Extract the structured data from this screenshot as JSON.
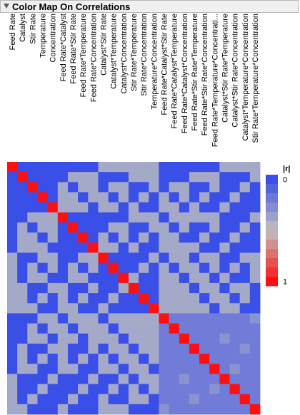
{
  "panel": {
    "title": "Color Map On Correlations",
    "disclosure_icon": "triangle-down-icon"
  },
  "chart_data": {
    "type": "heatmap",
    "title": "Color Map On Correlations",
    "variables": [
      "Feed Rate",
      "Catalyst",
      "Stir Rate",
      "Temperature",
      "Concentration",
      "Feed Rate*Catalyst",
      "Feed Rate*Stir Rate",
      "Feed Rate*Temperature",
      "Feed Rate*Concentration",
      "Catalyst*Stir Rate",
      "Catalyst*Temperature",
      "Catalyst*Concentration",
      "Stir Rate*Temperature",
      "Stir Rate*Concentration",
      "Temperature*Concentration",
      "Feed Rate*Catalyst*Stir Rate",
      "Feed Rate*Catalyst*Temperature",
      "Feed Rate*Catalyst*Concentration",
      "Feed Rate*Stir Rate*Temperature",
      "Feed Rate*Stir Rate*Concentration",
      "Feed Rate*Temperature*Concentrati...",
      "Catalyst*Stir Rate*Temperature",
      "Catalyst*Stir Rate*Concentration",
      "Catalyst*Temperature*Concentration",
      "Stir Rate*Temperature*Concentration"
    ],
    "value_label": "|r|",
    "color_scale": {
      "min": 0,
      "max": 1,
      "ticks": [
        0,
        1
      ],
      "low_color": "#3a4ee8",
      "mid_color": "#c0c0c0",
      "high_color": "#ff1010"
    },
    "legend_position": "right",
    "abs_r_matrix": [
      [
        1,
        0,
        0,
        0,
        0,
        0,
        0,
        0,
        0,
        0.4,
        0.4,
        0.4,
        0.4,
        0.4,
        0.4,
        0,
        0,
        0,
        0,
        0,
        0,
        0.4,
        0.4,
        0.4,
        0.4
      ],
      [
        0,
        1,
        0,
        0,
        0,
        0,
        0.4,
        0.4,
        0.4,
        0,
        0,
        0,
        0.4,
        0.4,
        0.4,
        0,
        0,
        0,
        0.4,
        0.4,
        0.4,
        0,
        0,
        0,
        0.4
      ],
      [
        0,
        0,
        1,
        0,
        0,
        0.4,
        0,
        0.4,
        0.4,
        0,
        0.4,
        0.4,
        0,
        0,
        0.4,
        0,
        0.4,
        0.4,
        0,
        0,
        0.4,
        0,
        0,
        0.4,
        0
      ],
      [
        0,
        0,
        0,
        1,
        0,
        0.4,
        0.4,
        0,
        0.4,
        0.4,
        0,
        0.4,
        0,
        0.4,
        0,
        0.4,
        0,
        0.4,
        0,
        0.4,
        0,
        0,
        0.4,
        0,
        0
      ],
      [
        0,
        0,
        0,
        0,
        1,
        0.4,
        0.4,
        0.4,
        0,
        0.4,
        0.4,
        0,
        0.4,
        0,
        0,
        0.4,
        0.4,
        0,
        0.4,
        0,
        0,
        0.4,
        0,
        0,
        0
      ],
      [
        0,
        0,
        0.4,
        0.4,
        0.4,
        1,
        0,
        0,
        0,
        0,
        0,
        0,
        0.4,
        0.4,
        0.4,
        0,
        0.4,
        0.4,
        0.4,
        0.4,
        0.4,
        0,
        0,
        0,
        0.4
      ],
      [
        0,
        0.4,
        0,
        0.4,
        0.4,
        0,
        1,
        0,
        0,
        0,
        0.4,
        0.4,
        0,
        0,
        0.4,
        0.4,
        0,
        0.4,
        0,
        0,
        0.4,
        0,
        0,
        0.4,
        0
      ],
      [
        0,
        0.4,
        0.4,
        0,
        0.4,
        0,
        0,
        1,
        0,
        0.4,
        0,
        0.4,
        0,
        0.4,
        0,
        0.4,
        0.4,
        0,
        0,
        0.4,
        0,
        0,
        0.4,
        0,
        0
      ],
      [
        0,
        0.4,
        0.4,
        0.4,
        0,
        0,
        0,
        0,
        1,
        0.4,
        0.4,
        0,
        0.4,
        0,
        0,
        0.4,
        0.4,
        0.4,
        0.4,
        0,
        0,
        0.4,
        0,
        0,
        0
      ],
      [
        0.4,
        0,
        0,
        0.4,
        0.4,
        0,
        0,
        0.4,
        0.4,
        1,
        0,
        0,
        0,
        0,
        0.4,
        0,
        0.4,
        0.4,
        0,
        0.4,
        0.4,
        0,
        0,
        0.4,
        0.4
      ],
      [
        0.4,
        0,
        0.4,
        0,
        0.4,
        0,
        0.4,
        0,
        0.4,
        0,
        1,
        0,
        0,
        0.4,
        0,
        0.4,
        0,
        0.4,
        0.4,
        0,
        0.4,
        0,
        0.4,
        0,
        0.4
      ],
      [
        0.4,
        0,
        0.4,
        0.4,
        0,
        0,
        0.4,
        0.4,
        0,
        0,
        0,
        1,
        0.4,
        0,
        0,
        0.4,
        0.4,
        0,
        0.4,
        0.4,
        0,
        0.4,
        0,
        0,
        0.4
      ],
      [
        0.4,
        0.4,
        0,
        0,
        0.4,
        0.4,
        0,
        0,
        0.4,
        0,
        0,
        0.4,
        1,
        0,
        0,
        0.4,
        0.4,
        0.4,
        0,
        0.4,
        0.4,
        0,
        0.4,
        0.4,
        0
      ],
      [
        0.4,
        0.4,
        0,
        0.4,
        0,
        0.4,
        0,
        0.4,
        0,
        0,
        0.4,
        0,
        0,
        1,
        0,
        0.4,
        0.4,
        0.4,
        0.4,
        0,
        0.4,
        0.4,
        0,
        0.4,
        0
      ],
      [
        0.4,
        0.4,
        0.4,
        0,
        0,
        0.4,
        0.4,
        0,
        0,
        0.4,
        0,
        0,
        0,
        0,
        1,
        0.4,
        0.4,
        0.4,
        0.4,
        0.4,
        0,
        0.4,
        0.4,
        0,
        0
      ],
      [
        0,
        0,
        0,
        0.4,
        0.4,
        0,
        0.4,
        0.4,
        0.4,
        0,
        0.4,
        0.4,
        0.4,
        0.4,
        0.4,
        1,
        0.2,
        0.2,
        0.2,
        0.2,
        0.2,
        0.2,
        0.2,
        0.2,
        0.3
      ],
      [
        0,
        0,
        0.4,
        0,
        0.4,
        0.4,
        0,
        0.4,
        0.4,
        0.4,
        0,
        0.4,
        0.4,
        0.4,
        0.4,
        0.2,
        1,
        0.2,
        0.2,
        0.2,
        0.2,
        0.2,
        0.2,
        0.2,
        0.2
      ],
      [
        0,
        0,
        0.4,
        0.4,
        0,
        0.4,
        0.4,
        0,
        0.4,
        0.4,
        0.4,
        0,
        0.4,
        0.4,
        0.4,
        0.2,
        0.2,
        1,
        0.2,
        0.2,
        0.2,
        0.3,
        0.2,
        0.2,
        0.2
      ],
      [
        0,
        0.4,
        0,
        0,
        0.4,
        0.4,
        0,
        0,
        0.4,
        0,
        0.4,
        0.4,
        0,
        0.4,
        0.4,
        0.2,
        0.2,
        0.2,
        1,
        0.2,
        0.2,
        0.2,
        0.2,
        0.3,
        0.2
      ],
      [
        0,
        0.4,
        0,
        0.4,
        0,
        0.4,
        0,
        0.4,
        0,
        0.4,
        0,
        0.4,
        0.4,
        0,
        0.4,
        0.2,
        0.2,
        0.2,
        0.2,
        1,
        0.2,
        0.2,
        0.2,
        0.2,
        0.2
      ],
      [
        0,
        0.4,
        0.4,
        0,
        0,
        0.4,
        0.4,
        0,
        0,
        0.4,
        0.4,
        0,
        0.4,
        0.4,
        0,
        0.2,
        0.2,
        0.2,
        0.2,
        0.2,
        1,
        0.2,
        0.3,
        0.2,
        0.2
      ],
      [
        0.4,
        0,
        0,
        0,
        0.4,
        0,
        0,
        0,
        0.4,
        0,
        0,
        0.4,
        0,
        0.4,
        0.4,
        0.2,
        0.2,
        0.3,
        0.2,
        0.2,
        0.2,
        1,
        0.2,
        0.2,
        0.2
      ],
      [
        0.4,
        0,
        0,
        0.4,
        0,
        0,
        0,
        0.4,
        0,
        0,
        0.4,
        0,
        0.4,
        0,
        0.4,
        0.2,
        0.2,
        0.2,
        0.2,
        0.2,
        0.3,
        0.2,
        1,
        0.2,
        0.2
      ],
      [
        0.4,
        0,
        0.4,
        0,
        0,
        0,
        0.4,
        0,
        0,
        0.4,
        0,
        0,
        0.4,
        0.4,
        0,
        0.2,
        0.2,
        0.2,
        0.3,
        0.2,
        0.2,
        0.2,
        0.2,
        1,
        0.2
      ],
      [
        0.4,
        0.4,
        0,
        0,
        0,
        0.4,
        0,
        0,
        0,
        0.4,
        0.4,
        0.4,
        0,
        0,
        0,
        0.3,
        0.2,
        0.2,
        0.2,
        0.2,
        0.2,
        0.2,
        0.2,
        0.2,
        1
      ]
    ]
  }
}
